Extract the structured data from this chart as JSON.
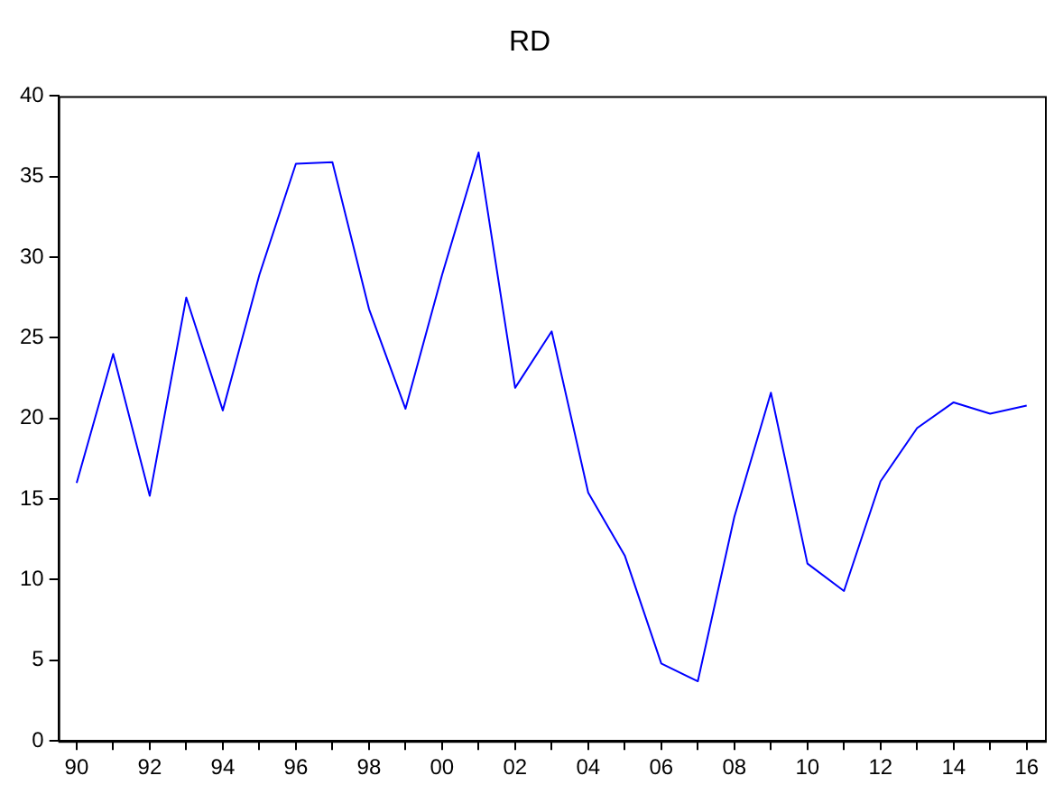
{
  "chart_data": {
    "type": "line",
    "title": "RD",
    "categories": [
      "90",
      null,
      "92",
      null,
      "94",
      null,
      "96",
      null,
      "98",
      null,
      "00",
      null,
      "02",
      null,
      "04",
      null,
      "06",
      null,
      "08",
      null,
      "10",
      null,
      "12",
      null,
      "14",
      null,
      "16"
    ],
    "series": [
      {
        "color": "#0000ff",
        "values": [
          16.0,
          24.0,
          15.2,
          27.5,
          20.5,
          28.9,
          35.8,
          35.9,
          26.8,
          20.6,
          28.9,
          36.5,
          21.9,
          25.4,
          15.4,
          11.5,
          4.8,
          3.7,
          13.9,
          21.6,
          11.0,
          9.3,
          16.1,
          19.4,
          21.0,
          20.3,
          20.8
        ]
      }
    ],
    "ylim": [
      0,
      40
    ],
    "yticks": [
      0,
      5,
      10,
      15,
      20,
      25,
      30,
      35,
      40
    ],
    "grid": false,
    "legend": false,
    "marker": "none",
    "line_style": "solid"
  }
}
